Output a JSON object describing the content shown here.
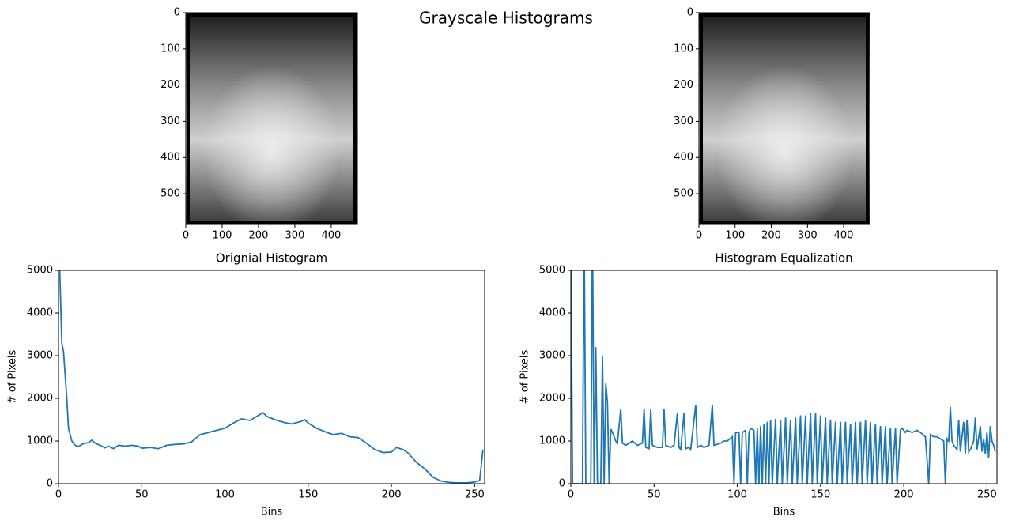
{
  "suptitle": "Grayscale Histograms",
  "chart_data": [
    {
      "type": "image",
      "xlim": [
        0,
        472
      ],
      "ylim": [
        585,
        0
      ],
      "xticks": [
        0,
        100,
        200,
        300,
        400
      ],
      "yticks": [
        0,
        100,
        200,
        300,
        400,
        500
      ]
    },
    {
      "type": "image",
      "xlim": [
        0,
        472
      ],
      "ylim": [
        585,
        0
      ],
      "xticks": [
        0,
        100,
        200,
        300,
        400
      ],
      "yticks": [
        0,
        100,
        200,
        300,
        400,
        500
      ]
    },
    {
      "type": "line",
      "title": "Orignial Histogram",
      "xlabel": "Bins",
      "ylabel": "# of Pixels",
      "color": "#1f77b4",
      "xlim": [
        0,
        256
      ],
      "ylim": [
        0,
        5000
      ],
      "xticks": [
        0,
        50,
        100,
        150,
        200,
        250
      ],
      "yticks": [
        0,
        1000,
        2000,
        3000,
        4000,
        5000
      ],
      "x": [
        0,
        2,
        3,
        5,
        6,
        8,
        10,
        12,
        14,
        16,
        18,
        20,
        22,
        25,
        28,
        30,
        33,
        36,
        40,
        44,
        48,
        50,
        55,
        60,
        65,
        70,
        75,
        80,
        85,
        90,
        95,
        100,
        105,
        110,
        115,
        120,
        123,
        125,
        130,
        135,
        140,
        145,
        148,
        150,
        155,
        160,
        165,
        170,
        175,
        180,
        185,
        190,
        195,
        200,
        203,
        207,
        210,
        215,
        220,
        225,
        230,
        235,
        240,
        245,
        250,
        253,
        255
      ],
      "values": [
        6000,
        3300,
        3100,
        2000,
        1300,
        1000,
        900,
        870,
        920,
        950,
        960,
        1020,
        950,
        900,
        840,
        880,
        820,
        900,
        880,
        900,
        880,
        830,
        850,
        820,
        900,
        920,
        930,
        980,
        1150,
        1200,
        1250,
        1300,
        1420,
        1520,
        1480,
        1600,
        1660,
        1580,
        1500,
        1440,
        1400,
        1450,
        1500,
        1420,
        1300,
        1220,
        1150,
        1180,
        1100,
        1080,
        950,
        800,
        730,
        740,
        850,
        800,
        720,
        500,
        350,
        150,
        60,
        30,
        20,
        20,
        40,
        80,
        800
      ]
    },
    {
      "type": "line",
      "title": "Histogram Equalization",
      "xlabel": "Bins",
      "ylabel": "# of Pixels",
      "color": "#1f77b4",
      "xlim": [
        0,
        256
      ],
      "ylim": [
        0,
        5000
      ],
      "xticks": [
        0,
        50,
        100,
        150,
        200,
        250
      ],
      "yticks": [
        0,
        1000,
        2000,
        3000,
        4000,
        5000
      ],
      "x": [
        0,
        1,
        7,
        8,
        9,
        12,
        13,
        14,
        15,
        16,
        18,
        19,
        20,
        21,
        22,
        23,
        24,
        25,
        27,
        28,
        30,
        31,
        33,
        35,
        37,
        40,
        43,
        44,
        45,
        47,
        48,
        49,
        52,
        55,
        56,
        57,
        60,
        62,
        64,
        65,
        66,
        68,
        69,
        71,
        72,
        75,
        76,
        78,
        80,
        83,
        85,
        86,
        90,
        92,
        94,
        97,
        98,
        99,
        101,
        102,
        103,
        105,
        106,
        107,
        108,
        110,
        111,
        112,
        113,
        114,
        115,
        116,
        117,
        118,
        119,
        120,
        121,
        123,
        124,
        126,
        127,
        129,
        130,
        132,
        133,
        135,
        136,
        138,
        139,
        141,
        142,
        144,
        145,
        147,
        148,
        150,
        151,
        153,
        154,
        156,
        157,
        159,
        160,
        162,
        163,
        165,
        166,
        168,
        169,
        171,
        172,
        174,
        175,
        177,
        178,
        180,
        181,
        183,
        184,
        186,
        187,
        189,
        190,
        192,
        193,
        195,
        196,
        198,
        199,
        201,
        202,
        205,
        208,
        210,
        213,
        215,
        216,
        218,
        220,
        222,
        224,
        225,
        226,
        227,
        228,
        229,
        230,
        232,
        233,
        234,
        236,
        237,
        238,
        239,
        240,
        242,
        243,
        244,
        246,
        247,
        248,
        249,
        250,
        251,
        252,
        253,
        254,
        255
      ],
      "values": [
        6000,
        0,
        0,
        6000,
        0,
        0,
        6000,
        0,
        3200,
        0,
        0,
        3000,
        0,
        2350,
        1900,
        0,
        1280,
        1200,
        1000,
        950,
        1750,
        950,
        900,
        950,
        1000,
        900,
        950,
        1750,
        850,
        820,
        1750,
        900,
        850,
        850,
        1750,
        900,
        850,
        900,
        1650,
        850,
        800,
        1650,
        820,
        850,
        800,
        1850,
        850,
        900,
        850,
        900,
        1850,
        900,
        950,
        1000,
        1000,
        1100,
        0,
        1200,
        1200,
        0,
        1200,
        1250,
        0,
        1200,
        1300,
        1250,
        0,
        1300,
        0,
        1350,
        0,
        1400,
        0,
        1450,
        0,
        1500,
        0,
        1520,
        0,
        1500,
        0,
        1550,
        0,
        1500,
        0,
        1550,
        0,
        1600,
        0,
        1600,
        0,
        1650,
        0,
        1650,
        0,
        1600,
        0,
        1550,
        0,
        1500,
        0,
        1450,
        0,
        1450,
        0,
        1450,
        0,
        1400,
        0,
        1450,
        0,
        1450,
        0,
        1500,
        0,
        1450,
        0,
        1400,
        0,
        1350,
        0,
        1350,
        0,
        1300,
        0,
        1300,
        0,
        1250,
        1300,
        1200,
        1250,
        1200,
        1250,
        1200,
        1100,
        0,
        1150,
        1100,
        1100,
        1050,
        1000,
        0,
        1050,
        1000,
        1800,
        1000,
        900,
        800,
        1500,
        750,
        1450,
        700,
        1500,
        750,
        800,
        1000,
        1550,
        800,
        1350,
        750,
        1050,
        700,
        1200,
        600,
        1350,
        1000,
        900,
        750
      ]
    }
  ]
}
